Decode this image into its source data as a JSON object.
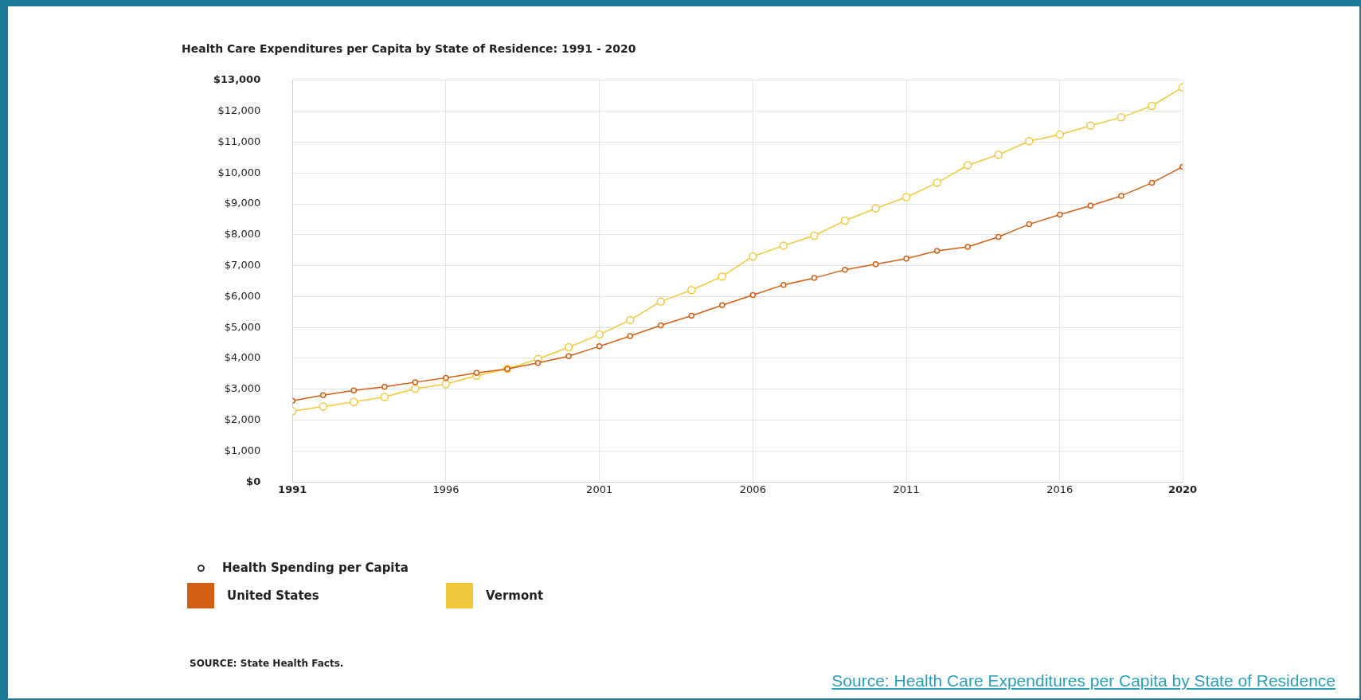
{
  "chart_data": {
    "type": "line",
    "title": "Health Care Expenditures per Capita by State of Residence: 1991 - 2020",
    "x": [
      1991,
      1992,
      1993,
      1994,
      1995,
      1996,
      1997,
      1998,
      1999,
      2000,
      2001,
      2002,
      2003,
      2004,
      2005,
      2006,
      2007,
      2008,
      2009,
      2010,
      2011,
      2012,
      2013,
      2014,
      2015,
      2016,
      2017,
      2018,
      2019,
      2020
    ],
    "series": [
      {
        "name": "United States",
        "color": "#d35f14",
        "values": [
          2630,
          2810,
          2960,
          3080,
          3230,
          3370,
          3530,
          3660,
          3850,
          4070,
          4390,
          4720,
          5070,
          5380,
          5720,
          6050,
          6380,
          6600,
          6870,
          7050,
          7230,
          7480,
          7610,
          7930,
          8340,
          8650,
          8940,
          9260,
          9680,
          10200
        ]
      },
      {
        "name": "Vermont",
        "color": "#f0c83c",
        "values": [
          2290,
          2440,
          2590,
          2750,
          3020,
          3170,
          3440,
          3660,
          3980,
          4360,
          4770,
          5240,
          5840,
          6210,
          6650,
          7300,
          7650,
          7970,
          8460,
          8850,
          9220,
          9680,
          10250,
          10590,
          11030,
          11240,
          11530,
          11800,
          12170,
          12770
        ]
      }
    ],
    "legend_title": "Health Spending per Capita",
    "xlim": [
      1991,
      2020
    ],
    "xticks": [
      1991,
      1996,
      2001,
      2006,
      2011,
      2016,
      2020
    ],
    "ylim": [
      0,
      13000
    ],
    "yticks": [
      {
        "value": 0,
        "label": "$0"
      },
      {
        "value": 1000,
        "label": "$1,000"
      },
      {
        "value": 2000,
        "label": "$2,000"
      },
      {
        "value": 3000,
        "label": "$3,000"
      },
      {
        "value": 4000,
        "label": "$4,000"
      },
      {
        "value": 5000,
        "label": "$5,000"
      },
      {
        "value": 6000,
        "label": "$6,000"
      },
      {
        "value": 7000,
        "label": "$7,000"
      },
      {
        "value": 8000,
        "label": "$8,000"
      },
      {
        "value": 9000,
        "label": "$9,000"
      },
      {
        "value": 10000,
        "label": "$10,000"
      },
      {
        "value": 11000,
        "label": "$11,000"
      },
      {
        "value": 12000,
        "label": "$12,000"
      },
      {
        "value": 13000,
        "label": "$13,000"
      }
    ],
    "grid": true,
    "legend": "bottom",
    "marker": "circle",
    "line_style": "solid",
    "annotations": [
      "SOURCE: State Health Facts.",
      "Source: Health Care Expenditures per Capita by State of Residence"
    ]
  }
}
